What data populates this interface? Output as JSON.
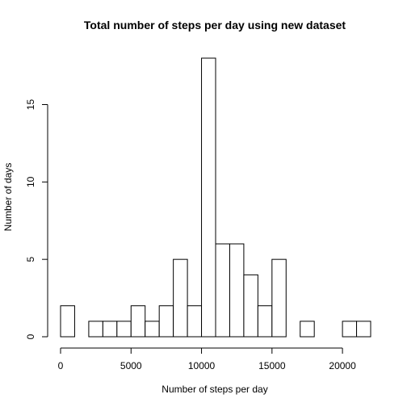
{
  "chart_data": {
    "type": "bar",
    "title": "Total number of steps per day using new dataset",
    "xlabel": "Number of steps per day",
    "ylabel": "Number of days",
    "bin_width": 1000,
    "bins": [
      {
        "x0": 0,
        "x1": 1000,
        "count": 2
      },
      {
        "x0": 1000,
        "x1": 2000,
        "count": 0
      },
      {
        "x0": 2000,
        "x1": 3000,
        "count": 1
      },
      {
        "x0": 3000,
        "x1": 4000,
        "count": 1
      },
      {
        "x0": 4000,
        "x1": 5000,
        "count": 1
      },
      {
        "x0": 5000,
        "x1": 6000,
        "count": 2
      },
      {
        "x0": 6000,
        "x1": 7000,
        "count": 1
      },
      {
        "x0": 7000,
        "x1": 8000,
        "count": 2
      },
      {
        "x0": 8000,
        "x1": 9000,
        "count": 5
      },
      {
        "x0": 9000,
        "x1": 10000,
        "count": 2
      },
      {
        "x0": 10000,
        "x1": 11000,
        "count": 18
      },
      {
        "x0": 11000,
        "x1": 12000,
        "count": 6
      },
      {
        "x0": 12000,
        "x1": 13000,
        "count": 6
      },
      {
        "x0": 13000,
        "x1": 14000,
        "count": 4
      },
      {
        "x0": 14000,
        "x1": 15000,
        "count": 2
      },
      {
        "x0": 15000,
        "x1": 16000,
        "count": 5
      },
      {
        "x0": 16000,
        "x1": 17000,
        "count": 0
      },
      {
        "x0": 17000,
        "x1": 18000,
        "count": 1
      },
      {
        "x0": 18000,
        "x1": 19000,
        "count": 0
      },
      {
        "x0": 19000,
        "x1": 20000,
        "count": 0
      },
      {
        "x0": 20000,
        "x1": 21000,
        "count": 1
      },
      {
        "x0": 21000,
        "x1": 22000,
        "count": 1
      }
    ],
    "xticks": [
      0,
      5000,
      10000,
      15000,
      20000
    ],
    "yticks": [
      0,
      5,
      10,
      15
    ],
    "xlim": [
      0,
      22000
    ],
    "ylim": [
      0,
      18
    ],
    "grid": false,
    "colors": {
      "bar_fill": "#ffffff",
      "bar_stroke": "#000000"
    }
  }
}
